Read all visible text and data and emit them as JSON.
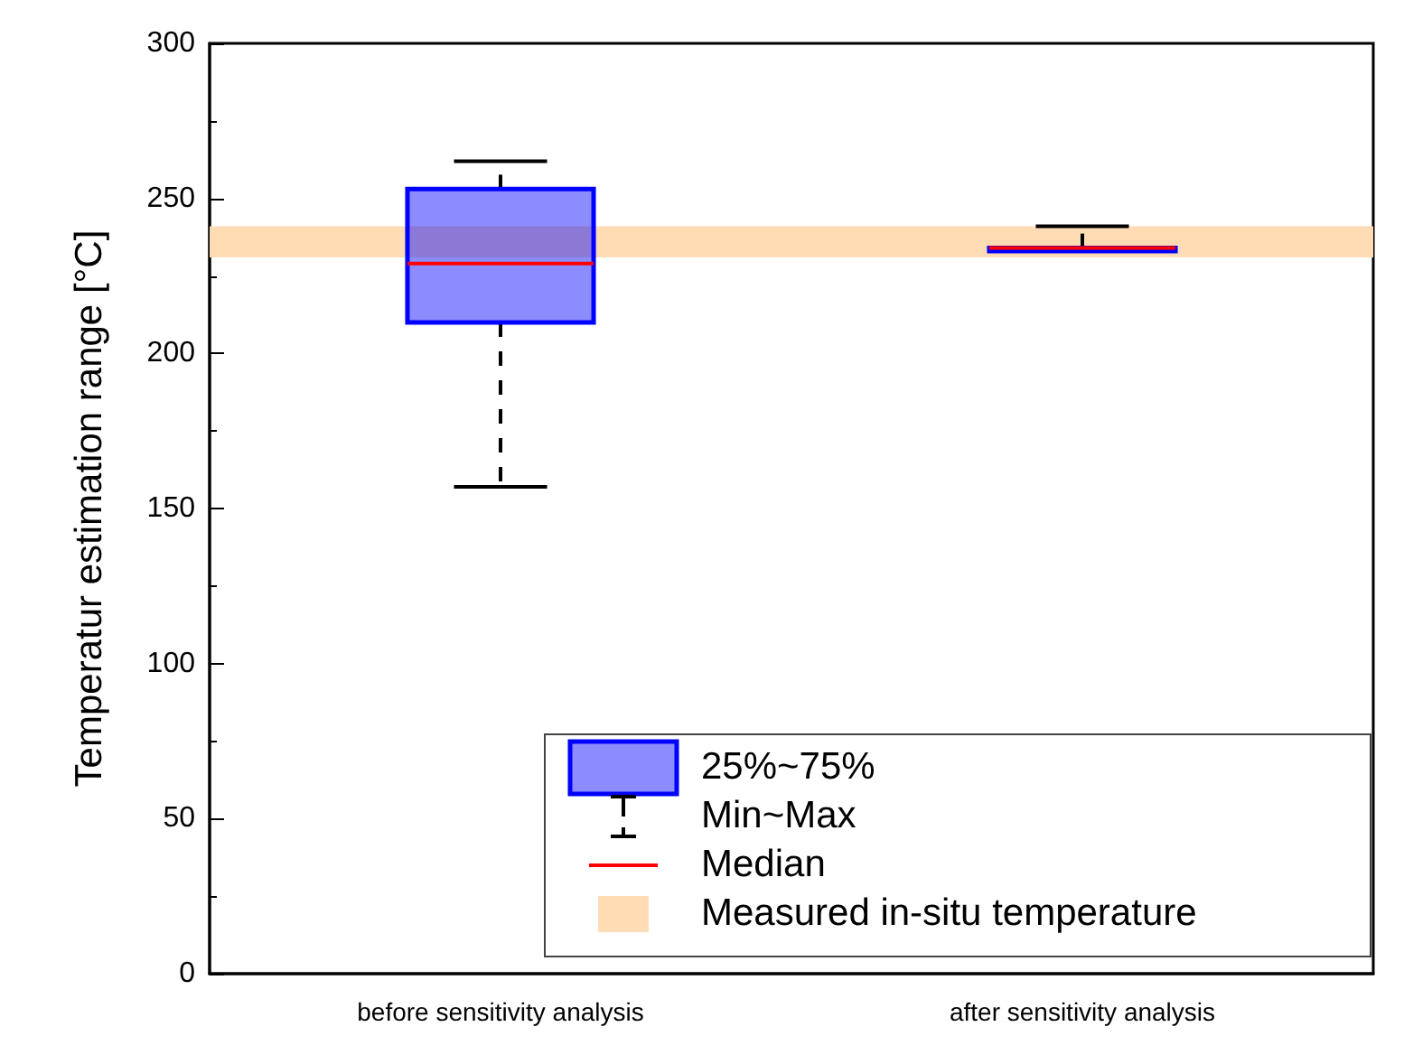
{
  "chart_data": {
    "type": "box",
    "ylabel": "Temperatur estimation range [°C]",
    "categories": [
      "before sensitivity analysis",
      "after sensitivity analysis"
    ],
    "series": [
      {
        "name": "25%~75%",
        "color": "#0000ff",
        "boxes": [
          {
            "low": 157,
            "q1": 210,
            "median": 229,
            "q3": 253,
            "high": 262
          },
          {
            "low": 233,
            "q1": 233,
            "median": 234,
            "q3": 234,
            "high": 241
          }
        ]
      }
    ],
    "ylim": [
      0,
      300
    ],
    "yticks": [
      0,
      50,
      100,
      150,
      200,
      250,
      300
    ],
    "bands": [
      {
        "axis": "y",
        "from": 231,
        "to": 241,
        "label": "Measured in-situ temperature",
        "color": "#ffdcb4"
      }
    ],
    "annotations": [
      "Min~Max",
      "Median"
    ],
    "grid": false,
    "legend": "bottom right"
  }
}
